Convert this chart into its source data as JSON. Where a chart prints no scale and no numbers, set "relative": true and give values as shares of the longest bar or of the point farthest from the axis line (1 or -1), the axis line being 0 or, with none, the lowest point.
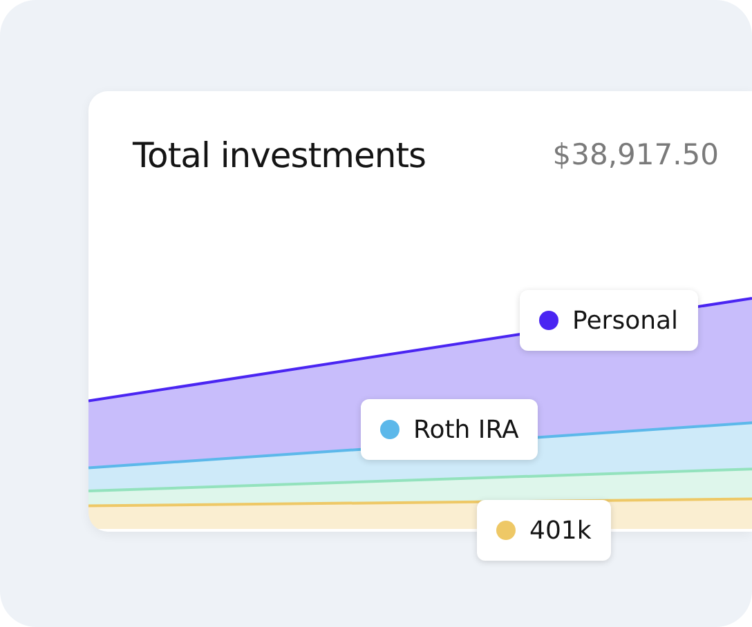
{
  "chart_data": {
    "type": "area",
    "title": "Total investments",
    "subtitle": "$38,917.50",
    "relative": true,
    "stacked": true,
    "marker": "none",
    "legend": "right",
    "categories": [
      null,
      null
    ],
    "series": [
      {
        "name": "401k",
        "color": "#eec866",
        "values": [
          0.1,
          0.13
        ]
      },
      {
        "color": "#93e2bd",
        "values": [
          0.065,
          0.13
        ]
      },
      {
        "name": "Roth IRA",
        "color": "#5cb8ea",
        "values": [
          0.1,
          0.2
        ]
      },
      {
        "name": "Personal",
        "color": "#4a25f2",
        "values": [
          0.29,
          0.54
        ]
      }
    ]
  }
}
